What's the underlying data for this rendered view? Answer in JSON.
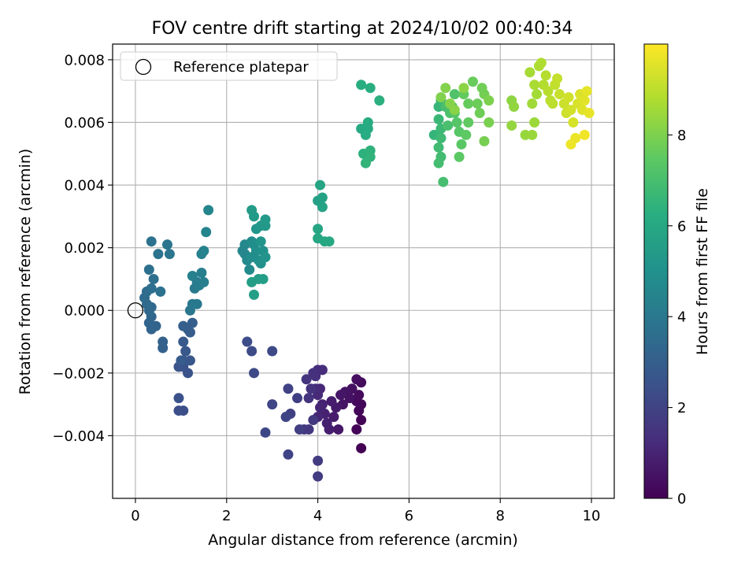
{
  "chart_data": {
    "type": "scatter",
    "title": "FOV centre drift starting at 2024/10/02 00:40:34",
    "xlabel": "Angular distance from reference (arcmin)",
    "ylabel": "Rotation from reference (arcmin)",
    "xlim": [
      -0.5,
      10.5
    ],
    "ylim": [
      -0.006,
      0.0085
    ],
    "xticks": [
      0,
      2,
      4,
      6,
      8,
      10
    ],
    "xtick_labels": [
      "0",
      "2",
      "4",
      "6",
      "8",
      "10"
    ],
    "yticks": [
      -0.004,
      -0.002,
      0.0,
      0.002,
      0.004,
      0.006,
      0.008
    ],
    "ytick_labels": [
      "−0.004",
      "−0.002",
      "0.000",
      "0.002",
      "0.004",
      "0.006",
      "0.008"
    ],
    "grid": true,
    "legend_position": "top-left",
    "legend": [
      {
        "label": "Reference platepar",
        "marker": "open-circle"
      }
    ],
    "reference_point": {
      "x": 0,
      "y": 0
    },
    "colorbar": {
      "label": "Hours from first FF file",
      "range": [
        0,
        10
      ],
      "ticks": [
        0,
        2,
        4,
        6,
        8
      ],
      "colormap": "viridis"
    },
    "series": [
      {
        "name": "",
        "points": [
          [
            4.95,
            -0.0044
          ],
          [
            4.95,
            -0.0035
          ],
          [
            4.85,
            -0.0038
          ],
          [
            4.9,
            -0.0032
          ],
          [
            4.95,
            -0.003
          ],
          [
            4.85,
            -0.0029
          ],
          [
            4.9,
            -0.0027
          ],
          [
            4.95,
            -0.0023
          ],
          [
            4.85,
            -0.0022
          ],
          [
            4.75,
            -0.0025
          ],
          [
            4.7,
            -0.0028
          ],
          [
            4.6,
            -0.0026
          ],
          [
            4.55,
            -0.003
          ],
          [
            4.5,
            -0.0027
          ],
          [
            4.45,
            -0.0038
          ],
          [
            4.4,
            -0.0031
          ],
          [
            4.35,
            -0.0034
          ],
          [
            4.3,
            -0.0029
          ],
          [
            4.25,
            -0.0038
          ],
          [
            4.2,
            -0.0036
          ],
          [
            4.15,
            -0.0033
          ],
          [
            4.1,
            -0.003
          ],
          [
            4.05,
            -0.0031
          ],
          [
            4.0,
            -0.0034
          ],
          [
            4.05,
            -0.0025
          ],
          [
            4.0,
            -0.0027
          ],
          [
            3.95,
            -0.0025
          ],
          [
            4.1,
            -0.0019
          ],
          [
            4.0,
            -0.0019
          ],
          [
            3.95,
            -0.0021
          ],
          [
            3.9,
            -0.002
          ],
          [
            3.85,
            -0.0025
          ],
          [
            3.8,
            -0.0028
          ],
          [
            3.75,
            -0.0022
          ],
          [
            3.7,
            -0.0038
          ],
          [
            3.8,
            -0.0038
          ],
          [
            3.9,
            -0.0035
          ],
          [
            4.0,
            -0.0048
          ],
          [
            4.0,
            -0.0053
          ],
          [
            3.6,
            -0.0038
          ],
          [
            3.55,
            -0.0028
          ],
          [
            3.4,
            -0.0033
          ],
          [
            3.35,
            -0.0025
          ],
          [
            3.35,
            -0.0046
          ],
          [
            3.3,
            -0.0034
          ],
          [
            3.0,
            -0.003
          ],
          [
            2.85,
            -0.0039
          ],
          [
            3.0,
            -0.0013
          ],
          [
            2.6,
            -0.002
          ],
          [
            2.55,
            -0.0013
          ],
          [
            2.45,
            -0.001
          ],
          [
            1.05,
            -0.0032
          ],
          [
            0.95,
            -0.0032
          ],
          [
            0.95,
            -0.0028
          ],
          [
            1.15,
            -0.002
          ],
          [
            1.05,
            -0.0018
          ],
          [
            0.95,
            -0.0018
          ],
          [
            1.05,
            -0.0016
          ],
          [
            1.2,
            -0.0016
          ],
          [
            1.1,
            -0.0013
          ],
          [
            1.05,
            -0.001
          ],
          [
            1.0,
            -0.0016
          ],
          [
            1.15,
            -0.0006
          ],
          [
            1.2,
            -0.0007
          ],
          [
            1.25,
            -0.0004
          ],
          [
            1.05,
            -0.0005
          ],
          [
            0.6,
            -0.0012
          ],
          [
            0.6,
            -0.001
          ],
          [
            0.45,
            -0.0005
          ],
          [
            0.35,
            -0.0006
          ],
          [
            0.3,
            -0.0004
          ],
          [
            0.35,
            -0.0002
          ],
          [
            0.3,
            0.0
          ],
          [
            0.35,
            0.0001
          ],
          [
            0.25,
            0.0002
          ],
          [
            0.2,
            0.0004
          ],
          [
            0.25,
            0.0006
          ],
          [
            0.35,
            0.0007
          ],
          [
            0.4,
            0.001
          ],
          [
            0.3,
            0.0013
          ],
          [
            0.55,
            0.0006
          ],
          [
            0.35,
            0.0022
          ],
          [
            0.5,
            0.0018
          ],
          [
            0.7,
            0.0021
          ],
          [
            0.75,
            0.0018
          ],
          [
            1.2,
            0.0
          ],
          [
            1.25,
            0.0002
          ],
          [
            1.35,
            0.0002
          ],
          [
            1.3,
            0.0007
          ],
          [
            1.35,
            0.0009
          ],
          [
            1.4,
            0.0008
          ],
          [
            1.5,
            0.0009
          ],
          [
            1.45,
            0.0012
          ],
          [
            1.25,
            0.0011
          ],
          [
            1.45,
            0.0018
          ],
          [
            1.5,
            0.0019
          ],
          [
            1.55,
            0.0025
          ],
          [
            1.6,
            0.0032
          ],
          [
            2.35,
            0.0019
          ],
          [
            2.4,
            0.0018
          ],
          [
            2.4,
            0.0021
          ],
          [
            2.45,
            0.0016
          ],
          [
            2.5,
            0.0013
          ],
          [
            2.55,
            0.0017
          ],
          [
            2.55,
            0.0022
          ],
          [
            2.6,
            0.0021
          ],
          [
            2.65,
            0.0019
          ],
          [
            2.7,
            0.0016
          ],
          [
            2.8,
            0.0019
          ],
          [
            2.75,
            0.0015
          ],
          [
            2.85,
            0.0017
          ],
          [
            2.75,
            0.0022
          ],
          [
            2.65,
            0.0026
          ],
          [
            2.75,
            0.0027
          ],
          [
            2.85,
            0.0027
          ],
          [
            2.85,
            0.0029
          ],
          [
            2.6,
            0.003
          ],
          [
            2.55,
            0.0032
          ],
          [
            2.7,
            0.001
          ],
          [
            2.55,
            0.0009
          ],
          [
            2.8,
            0.001
          ],
          [
            2.6,
            0.0005
          ],
          [
            4.0,
            0.0035
          ],
          [
            4.1,
            0.0036
          ],
          [
            4.1,
            0.0033
          ],
          [
            4.05,
            0.004
          ],
          [
            4.0,
            0.0026
          ],
          [
            4.0,
            0.0023
          ],
          [
            4.15,
            0.0022
          ],
          [
            4.25,
            0.0022
          ],
          [
            4.95,
            0.0058
          ],
          [
            5.1,
            0.0058
          ],
          [
            5.1,
            0.006
          ],
          [
            5.05,
            0.0056
          ],
          [
            4.95,
            0.0072
          ],
          [
            5.15,
            0.0071
          ],
          [
            5.35,
            0.0067
          ],
          [
            5.0,
            0.005
          ],
          [
            5.15,
            0.0051
          ],
          [
            5.15,
            0.0049
          ],
          [
            5.05,
            0.0047
          ],
          [
            6.55,
            0.0056
          ],
          [
            6.65,
            0.0065
          ],
          [
            6.7,
            0.0067
          ],
          [
            6.65,
            0.0061
          ],
          [
            6.7,
            0.0058
          ],
          [
            6.7,
            0.0055
          ],
          [
            6.65,
            0.0052
          ],
          [
            6.7,
            0.0049
          ],
          [
            6.65,
            0.0047
          ],
          [
            6.75,
            0.0041
          ],
          [
            6.8,
            0.0065
          ],
          [
            6.85,
            0.0059
          ],
          [
            6.9,
            0.0063
          ],
          [
            6.95,
            0.0065
          ],
          [
            7.0,
            0.0069
          ],
          [
            7.0,
            0.0063
          ],
          [
            7.05,
            0.006
          ],
          [
            7.1,
            0.0057
          ],
          [
            7.15,
            0.0053
          ],
          [
            7.1,
            0.0049
          ],
          [
            7.25,
            0.0056
          ],
          [
            7.3,
            0.006
          ],
          [
            7.2,
            0.0069
          ],
          [
            7.3,
            0.0066
          ],
          [
            7.4,
            0.0073
          ],
          [
            7.5,
            0.0066
          ],
          [
            7.55,
            0.0063
          ],
          [
            7.6,
            0.0071
          ],
          [
            7.65,
            0.0069
          ],
          [
            7.65,
            0.0054
          ],
          [
            7.75,
            0.006
          ],
          [
            7.75,
            0.0067
          ],
          [
            6.7,
            0.0068
          ],
          [
            6.8,
            0.0071
          ],
          [
            6.9,
            0.0066
          ],
          [
            7.0,
            0.0064
          ],
          [
            7.2,
            0.0071
          ],
          [
            8.25,
            0.0067
          ],
          [
            8.3,
            0.0065
          ],
          [
            8.25,
            0.0059
          ],
          [
            8.55,
            0.0056
          ],
          [
            8.7,
            0.0056
          ],
          [
            8.75,
            0.006
          ],
          [
            8.7,
            0.0066
          ],
          [
            8.8,
            0.0069
          ],
          [
            8.65,
            0.0076
          ],
          [
            8.75,
            0.0072
          ],
          [
            8.85,
            0.0078
          ],
          [
            8.9,
            0.0079
          ],
          [
            8.95,
            0.0072
          ],
          [
            9.0,
            0.0075
          ],
          [
            9.05,
            0.007
          ],
          [
            9.1,
            0.0067
          ],
          [
            9.15,
            0.0066
          ],
          [
            9.2,
            0.0072
          ],
          [
            9.25,
            0.0074
          ],
          [
            9.3,
            0.0069
          ],
          [
            9.4,
            0.0066
          ],
          [
            9.45,
            0.0063
          ],
          [
            9.5,
            0.0068
          ],
          [
            9.55,
            0.0064
          ],
          [
            9.6,
            0.006
          ],
          [
            9.7,
            0.0066
          ],
          [
            9.75,
            0.0069
          ],
          [
            9.8,
            0.0064
          ],
          [
            9.85,
            0.0067
          ],
          [
            9.9,
            0.007
          ],
          [
            9.95,
            0.0063
          ],
          [
            9.65,
            0.0055
          ],
          [
            9.55,
            0.0053
          ],
          [
            9.85,
            0.0056
          ]
        ]
      }
    ]
  }
}
